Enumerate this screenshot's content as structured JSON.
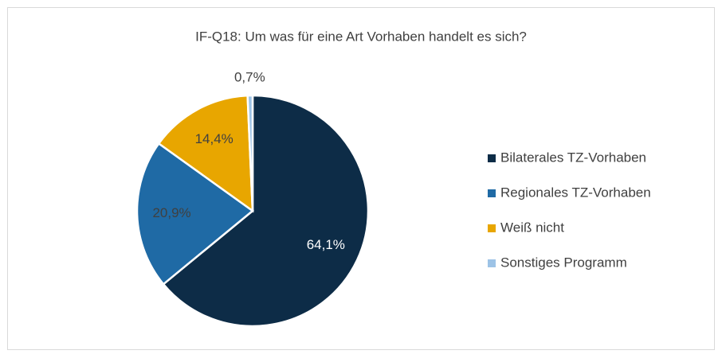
{
  "chart_data": {
    "type": "pie",
    "title": "IF-Q18: Um was für eine Art Vorhaben handelt es sich?",
    "categories": [
      "Bilaterales TZ-Vorhaben",
      "Regionales TZ-Vorhaben",
      "Weiß nicht",
      "Sonstiges Programm"
    ],
    "values": [
      64.1,
      20.9,
      14.4,
      0.7
    ],
    "value_labels": [
      "64,1%",
      "20,9%",
      "14,4%",
      "0,7%"
    ],
    "colors": [
      "#0d2c47",
      "#1f6aa5",
      "#e8a600",
      "#9dc3e6"
    ],
    "legend": "right"
  }
}
